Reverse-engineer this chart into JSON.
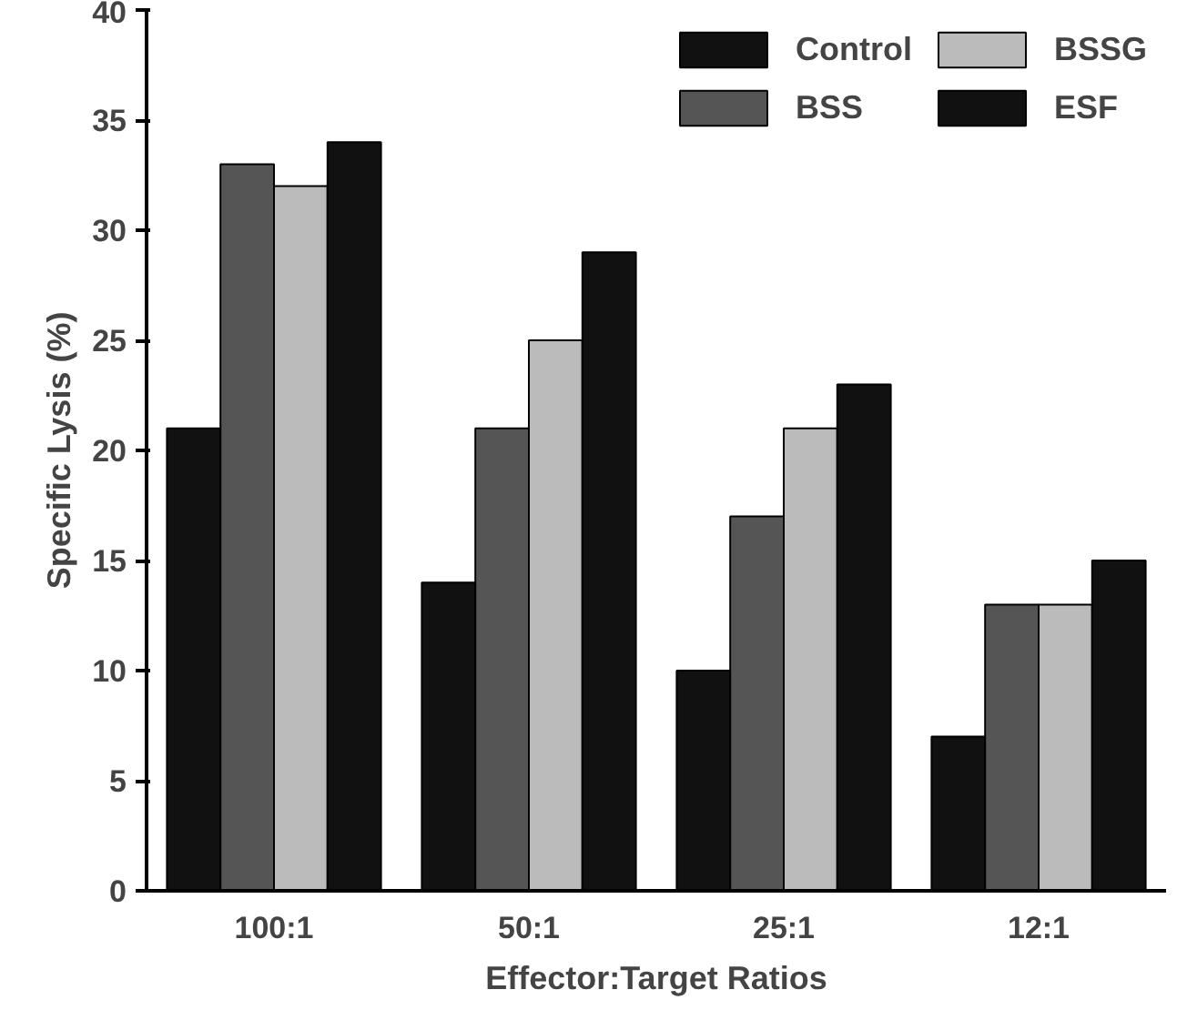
{
  "chart_data": {
    "type": "bar",
    "xlabel": "Effector:Target Ratios",
    "ylabel": "Specific Lysis (%)",
    "categories": [
      "100:1",
      "50:1",
      "25:1",
      "12:1"
    ],
    "series": [
      {
        "name": "Control",
        "color": "#111111",
        "values": [
          21,
          14,
          10,
          7
        ]
      },
      {
        "name": "BSS",
        "color": "#555555",
        "values": [
          33,
          21,
          17,
          13
        ]
      },
      {
        "name": "BSSG",
        "color": "#bbbbbb",
        "values": [
          32,
          25,
          21,
          13
        ]
      },
      {
        "name": "ESF",
        "color": "#111111",
        "values": [
          34,
          29,
          23,
          15
        ]
      }
    ],
    "ylim": [
      0,
      40
    ],
    "yticks": [
      0,
      5,
      10,
      15,
      20,
      25,
      30,
      35,
      40
    ],
    "grid": false,
    "legend": "top right"
  }
}
